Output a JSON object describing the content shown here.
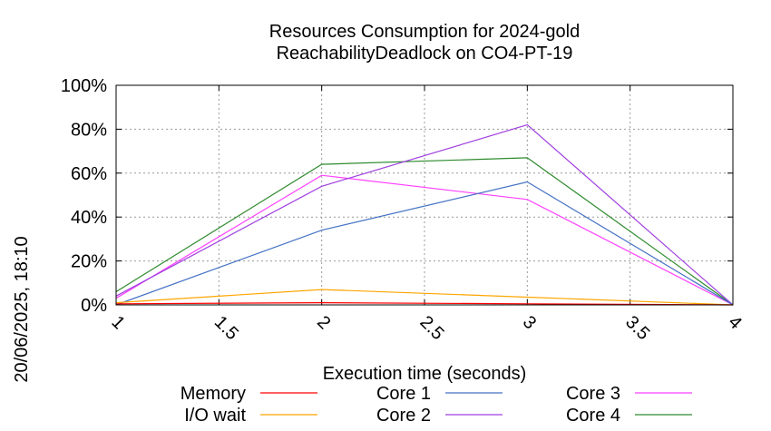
{
  "side_label": "20/06/2025, 18:10",
  "chart_data": {
    "type": "line",
    "title_line1": "Resources Consumption for 2024-gold",
    "title_line2": "ReachabilityDeadlock on CO4-PT-19",
    "xlabel": "Execution time (seconds)",
    "ylabel": "",
    "xlim": [
      1,
      4
    ],
    "ylim": [
      0,
      100
    ],
    "x_ticks": [
      "1",
      "1.5",
      "2",
      "2.5",
      "3",
      "3.5",
      "4"
    ],
    "y_ticks": [
      "0%",
      "20%",
      "40%",
      "60%",
      "80%",
      "100%"
    ],
    "grid": true,
    "legend_position": "bottom",
    "series": [
      {
        "name": "Memory",
        "color": "#ff0000",
        "x": [
          1,
          2,
          3,
          4
        ],
        "values": [
          0.5,
          1,
          0.5,
          0
        ]
      },
      {
        "name": "I/O wait",
        "color": "#ffa500",
        "x": [
          1,
          2,
          3,
          4
        ],
        "values": [
          1,
          7,
          3.5,
          0
        ]
      },
      {
        "name": "Core 1",
        "color": "#4472c4",
        "x": [
          1,
          2,
          3,
          4
        ],
        "values": [
          0,
          34,
          56,
          0
        ]
      },
      {
        "name": "Core 2",
        "color": "#a040e0",
        "x": [
          1,
          2,
          3,
          4
        ],
        "values": [
          4,
          54,
          82,
          0
        ]
      },
      {
        "name": "Core 3",
        "color": "#ff40ff",
        "x": [
          1,
          2,
          3,
          4
        ],
        "values": [
          3,
          59,
          48,
          0
        ]
      },
      {
        "name": "Core 4",
        "color": "#2e8b2e",
        "x": [
          1,
          2,
          3,
          4
        ],
        "values": [
          6,
          64,
          67,
          0
        ]
      }
    ]
  }
}
